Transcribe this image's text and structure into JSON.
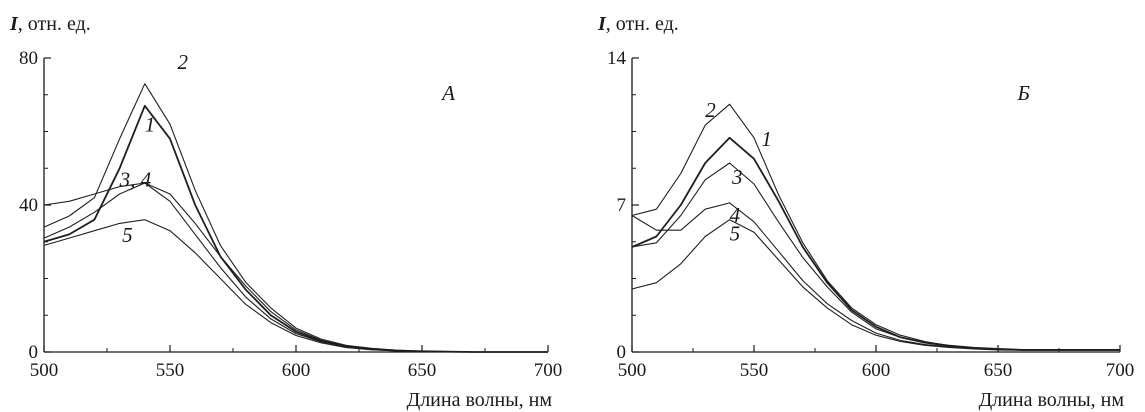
{
  "chart_data": [
    {
      "type": "line",
      "panel_label": "А",
      "ylabel_symbol": "I",
      "ylabel_rest": ", отн. ед.",
      "xlabel": "Длина волны, нм",
      "xlim": [
        500,
        700
      ],
      "ylim": [
        0,
        80
      ],
      "xticks": [
        "500",
        "550",
        "600",
        "650",
        "700"
      ],
      "yticks": [
        "0",
        "40",
        "80"
      ],
      "grid": false,
      "series": [
        {
          "name": "1",
          "x": [
            500,
            510,
            520,
            530,
            540,
            550,
            560,
            570,
            580,
            590,
            600,
            610,
            620,
            630,
            640,
            650,
            660,
            670,
            680,
            690,
            700
          ],
          "y": [
            30,
            32,
            36,
            50,
            67,
            58,
            40,
            26,
            17,
            10,
            5.5,
            3,
            1.5,
            0.8,
            0.4,
            0.2,
            0.1,
            0,
            0,
            0,
            0
          ]
        },
        {
          "name": "2",
          "x": [
            500,
            510,
            520,
            530,
            540,
            550,
            560,
            570,
            580,
            590,
            600,
            610,
            620,
            630,
            640,
            650,
            660,
            670,
            680,
            690,
            700
          ],
          "y": [
            34,
            37,
            42,
            58,
            73,
            62,
            44,
            29,
            19,
            12,
            6.5,
            3.5,
            1.8,
            1,
            0.5,
            0.2,
            0.1,
            0,
            0,
            0,
            0
          ]
        },
        {
          "name": "3",
          "x": [
            500,
            510,
            520,
            530,
            540,
            550,
            560,
            570,
            580,
            590,
            600,
            610,
            620,
            630,
            640,
            650,
            660,
            670,
            680,
            690,
            700
          ],
          "y": [
            40,
            41,
            43,
            45,
            46,
            43,
            35,
            26,
            18,
            11,
            6,
            3.2,
            1.6,
            0.8,
            0.4,
            0.2,
            0.1,
            0,
            0,
            0,
            0
          ]
        },
        {
          "name": "4",
          "x": [
            500,
            510,
            520,
            530,
            540,
            550,
            560,
            570,
            580,
            590,
            600,
            610,
            620,
            630,
            640,
            650,
            660,
            670,
            680,
            690,
            700
          ],
          "y": [
            31,
            34,
            38,
            43,
            46,
            41,
            32,
            23,
            15,
            9,
            5,
            2.8,
            1.4,
            0.7,
            0.3,
            0.1,
            0,
            0,
            0,
            0,
            0
          ]
        },
        {
          "name": "5",
          "x": [
            500,
            510,
            520,
            530,
            540,
            550,
            560,
            570,
            580,
            590,
            600,
            610,
            620,
            630,
            640,
            650,
            660,
            670,
            680,
            690,
            700
          ],
          "y": [
            29,
            31,
            33,
            35,
            36,
            33,
            27,
            20,
            13,
            8,
            4.5,
            2.5,
            1.2,
            0.6,
            0.3,
            0.1,
            0,
            0,
            0,
            0,
            0
          ]
        }
      ],
      "series_labels": [
        {
          "text": "2",
          "x": 553,
          "y": 77
        },
        {
          "text": "1",
          "x": 540,
          "y": 60
        },
        {
          "text": "3, 4",
          "x": 530,
          "y": 45
        },
        {
          "text": "5",
          "x": 531,
          "y": 30
        }
      ]
    },
    {
      "type": "line",
      "panel_label": "Б",
      "ylabel_symbol": "I",
      "ylabel_rest": ", отн. ед.",
      "xlabel": "Длина волны, нм",
      "xlim": [
        500,
        700
      ],
      "ylim": [
        0,
        14
      ],
      "xticks": [
        "500",
        "550",
        "600",
        "650",
        "700"
      ],
      "yticks": [
        "0",
        "7",
        "14"
      ],
      "grid": false,
      "series": [
        {
          "name": "1",
          "x": [
            500,
            510,
            520,
            530,
            540,
            550,
            560,
            570,
            580,
            590,
            600,
            610,
            620,
            630,
            640,
            650,
            660,
            670,
            680,
            690,
            700
          ],
          "y": [
            5,
            5.5,
            7,
            9,
            10.2,
            9.2,
            7.2,
            5,
            3.3,
            2,
            1.2,
            0.7,
            0.45,
            0.3,
            0.2,
            0.15,
            0.1,
            0.1,
            0.1,
            0.1,
            0.1
          ]
        },
        {
          "name": "2",
          "x": [
            500,
            510,
            520,
            530,
            540,
            550,
            560,
            570,
            580,
            590,
            600,
            610,
            620,
            630,
            640,
            650,
            660,
            670,
            680,
            690,
            700
          ],
          "y": [
            6.5,
            6.8,
            8.5,
            10.8,
            11.8,
            10.2,
            7.5,
            5.2,
            3.4,
            2.1,
            1.3,
            0.8,
            0.5,
            0.3,
            0.2,
            0.15,
            0.1,
            0.1,
            0.1,
            0.1,
            0.1
          ]
        },
        {
          "name": "3",
          "x": [
            500,
            510,
            520,
            530,
            540,
            550,
            560,
            570,
            580,
            590,
            600,
            610,
            620,
            630,
            640,
            650,
            660,
            670,
            680,
            690,
            700
          ],
          "y": [
            5,
            5.2,
            6.5,
            8.2,
            9,
            8,
            6.2,
            4.5,
            3.1,
            1.9,
            1.1,
            0.7,
            0.45,
            0.3,
            0.2,
            0.15,
            0.1,
            0.1,
            0.1,
            0.1,
            0.1
          ]
        },
        {
          "name": "4",
          "x": [
            500,
            510,
            520,
            530,
            540,
            550,
            560,
            570,
            580,
            590,
            600,
            610,
            620,
            630,
            640,
            650,
            660,
            670,
            680,
            690,
            700
          ],
          "y": [
            6.5,
            5.8,
            5.8,
            6.8,
            7.1,
            6.2,
            4.8,
            3.4,
            2.3,
            1.5,
            0.9,
            0.55,
            0.35,
            0.25,
            0.18,
            0.12,
            0.1,
            0.1,
            0.1,
            0.1,
            0.1
          ]
        },
        {
          "name": "5",
          "x": [
            500,
            510,
            520,
            530,
            540,
            550,
            560,
            570,
            580,
            590,
            600,
            610,
            620,
            630,
            640,
            650,
            660,
            670,
            680,
            690,
            700
          ],
          "y": [
            3,
            3.3,
            4.2,
            5.5,
            6.3,
            5.7,
            4.4,
            3.1,
            2.1,
            1.3,
            0.8,
            0.5,
            0.32,
            0.22,
            0.15,
            0.1,
            0.08,
            0.08,
            0.08,
            0.08,
            0.08
          ]
        }
      ],
      "series_labels": [
        {
          "text": "2",
          "x": 530,
          "y": 11.2
        },
        {
          "text": "1",
          "x": 553,
          "y": 9.8
        },
        {
          "text": "3",
          "x": 541,
          "y": 8
        },
        {
          "text": "4",
          "x": 540,
          "y": 6.2
        },
        {
          "text": "5",
          "x": 540,
          "y": 5.3
        }
      ]
    }
  ]
}
